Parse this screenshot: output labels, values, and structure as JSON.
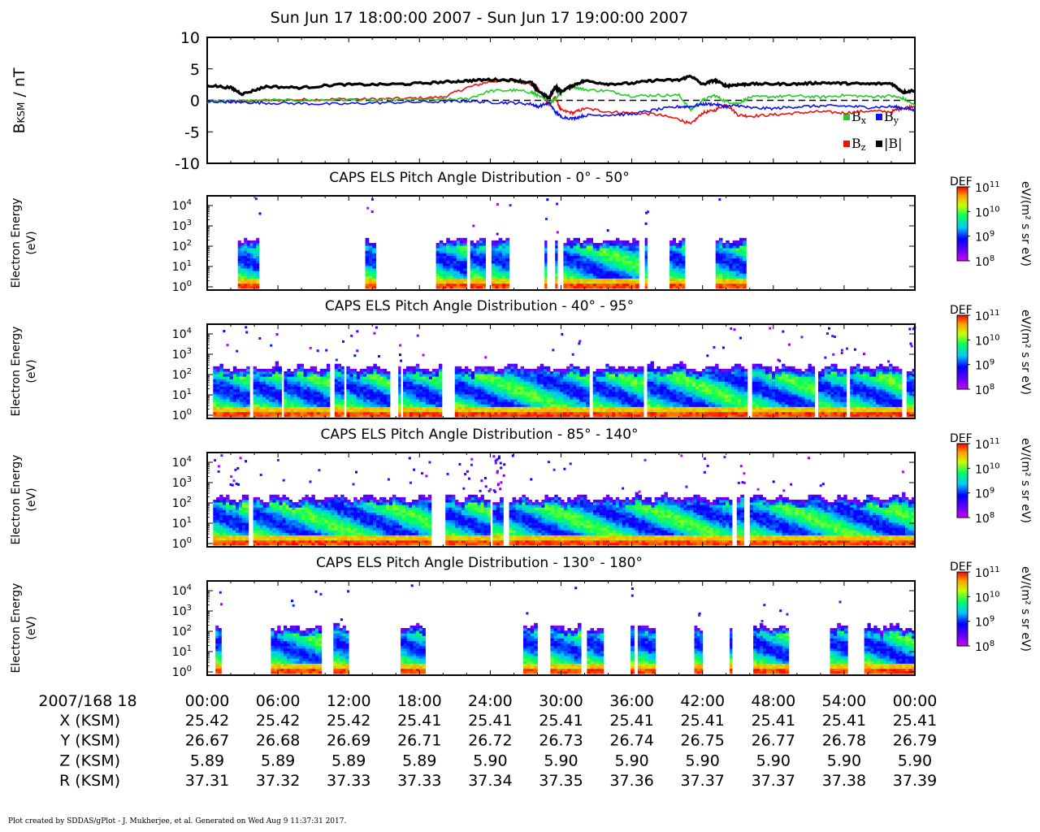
{
  "title": "Sun Jun 17 18:00:00 2007 - Sun Jun 17 19:00:00 2007",
  "footer": "Plot created by SDDAS/gPlot - J. Mukherjee, et al.  Generated on Wed Aug 9 11:37:31 2017.",
  "colors": {
    "bx": "#22cc22",
    "by": "#1010ee",
    "bz": "#ee1010",
    "bmag": "#000000"
  },
  "chart_data": [
    {
      "type": "line",
      "ylabel": "B",
      "ylabel_sub": "KSM",
      "ylabel_unit": " / nT",
      "ylim": [
        -10,
        10
      ],
      "yticks": [
        "10",
        "5",
        "0",
        "-5",
        "-10"
      ],
      "xlim_min": [
        0,
        60
      ],
      "zero_line": "dashed",
      "legend": {
        "placement": "bottom-right",
        "items": [
          {
            "key": "bx",
            "base": "B",
            "sub": "x"
          },
          {
            "key": "by",
            "base": "B",
            "sub": "y"
          },
          {
            "key": "bz",
            "base": "B",
            "sub": "z"
          },
          {
            "key": "bmag",
            "base": "|B|",
            "sub": ""
          }
        ]
      },
      "x_min": [
        0,
        2,
        3,
        5,
        8,
        11,
        14,
        17,
        20,
        22,
        24,
        26,
        27.5,
        28,
        29,
        29.5,
        30,
        31,
        32,
        34,
        36,
        38,
        40,
        41,
        42,
        43,
        44,
        45,
        46,
        48,
        50,
        52,
        54,
        56,
        58,
        59,
        60
      ],
      "series": [
        {
          "key": "bmag",
          "values": [
            2.4,
            2.0,
            1.0,
            2.2,
            2.0,
            2.5,
            2.5,
            2.6,
            2.9,
            3.1,
            3.3,
            3.2,
            2.8,
            1.6,
            0.3,
            2.2,
            1.4,
            2.4,
            3.1,
            2.6,
            2.7,
            3.2,
            3.2,
            3.9,
            2.5,
            3.2,
            2.3,
            2.5,
            2.6,
            2.6,
            2.6,
            2.8,
            2.7,
            2.6,
            2.7,
            1.3,
            1.6
          ]
        },
        {
          "key": "bx",
          "values": [
            -0.2,
            -0.1,
            -0.1,
            0.0,
            0.0,
            0.1,
            0.0,
            0.1,
            0.1,
            0.2,
            1.5,
            1.6,
            1.3,
            0.8,
            -0.3,
            0.2,
            1.3,
            2.2,
            1.7,
            1.5,
            0.7,
            0.8,
            0.8,
            -1.5,
            0.0,
            0.8,
            -0.2,
            -0.5,
            0.5,
            0.6,
            0.7,
            0.5,
            0.8,
            0.6,
            0.7,
            0.3,
            -0.8
          ]
        },
        {
          "key": "by",
          "values": [
            -0.2,
            -0.2,
            -0.3,
            -0.4,
            -0.5,
            -0.6,
            -0.4,
            -0.3,
            -0.2,
            -0.1,
            -0.3,
            -0.4,
            -0.6,
            -1.0,
            -0.4,
            -1.8,
            -2.6,
            -2.9,
            -2.4,
            -2.3,
            -2.2,
            -1.5,
            -1.0,
            -1.0,
            -0.6,
            -0.6,
            -1.0,
            -0.8,
            -1.2,
            -1.3,
            -1.0,
            -0.9,
            -0.9,
            -1.1,
            -1.0,
            -1.2,
            -1.6
          ]
        },
        {
          "key": "bz",
          "values": [
            -0.1,
            -0.2,
            -0.2,
            0.0,
            0.1,
            0.2,
            0.2,
            0.3,
            0.5,
            2.0,
            3.0,
            3.2,
            2.5,
            2.0,
            -0.8,
            0.5,
            -1.6,
            -2.0,
            -1.3,
            -1.8,
            -2.0,
            -2.2,
            -3.0,
            -3.8,
            -2.0,
            -1.6,
            -0.6,
            -2.3,
            -2.5,
            -2.3,
            -2.0,
            -1.8,
            -2.0,
            -1.7,
            -1.8,
            -1.2,
            -0.9
          ]
        }
      ]
    },
    {
      "type": "heatmap",
      "title": "CAPS ELS Pitch Angle Distribution - 0° - 50°",
      "ylabel": "Electron Energy\n(eV)",
      "colorbar_label": "DEF",
      "colorbar_unit": "eV/(m² s sr eV)",
      "colorbar_ticks": [
        "11",
        "10",
        "9",
        "8"
      ],
      "yticks": [
        "4",
        "3",
        "2",
        "1",
        "0"
      ],
      "log_energy_range": [
        0,
        4.4
      ],
      "coverage_min": [
        [
          2.6,
          4.4
        ],
        [
          13.4,
          14.3
        ],
        [
          19.4,
          22.0
        ],
        [
          22.3,
          23.6
        ],
        [
          24.1,
          25.6
        ],
        [
          28.6,
          28.8
        ],
        [
          29.5,
          29.7
        ],
        [
          30.2,
          36.6
        ],
        [
          37.1,
          37.3
        ],
        [
          39.2,
          40.5
        ],
        [
          43.1,
          45.7
        ]
      ],
      "top_ev_log": 2.35,
      "noise_count": 18
    },
    {
      "type": "heatmap",
      "title": "CAPS ELS Pitch Angle Distribution - 40° - 95°",
      "ylabel": "Electron Energy\n(eV)",
      "colorbar_label": "DEF",
      "colorbar_unit": "eV/(m² s sr eV)",
      "colorbar_ticks": [
        "11",
        "10",
        "9",
        "8"
      ],
      "yticks": [
        "4",
        "3",
        "2",
        "1",
        "0"
      ],
      "log_energy_range": [
        0,
        4.4
      ],
      "coverage_min": [
        [
          0.5,
          3.6
        ],
        [
          3.9,
          6.3
        ],
        [
          6.5,
          10.4
        ],
        [
          10.8,
          11.6
        ],
        [
          11.8,
          15.5
        ],
        [
          16.2,
          16.4
        ],
        [
          16.6,
          19.9
        ],
        [
          21.0,
          32.4
        ],
        [
          32.7,
          37.0
        ],
        [
          37.3,
          45.8
        ],
        [
          46.2,
          51.5
        ],
        [
          51.8,
          54.2
        ],
        [
          54.5,
          58.9
        ],
        [
          59.3,
          60.0
        ]
      ],
      "top_ev_log": 2.4,
      "noise_count": 60
    },
    {
      "type": "heatmap",
      "title": "CAPS ELS Pitch Angle Distribution - 85° - 140°",
      "ylabel": "Electron Energy\n(eV)",
      "colorbar_label": "DEF",
      "colorbar_unit": "eV/(m² s sr eV)",
      "colorbar_ticks": [
        "11",
        "10",
        "9",
        "8"
      ],
      "yticks": [
        "4",
        "3",
        "2",
        "1",
        "0"
      ],
      "log_energy_range": [
        0,
        4.4
      ],
      "coverage_min": [
        [
          0.5,
          3.5
        ],
        [
          3.9,
          19.0
        ],
        [
          20.2,
          24.0
        ],
        [
          24.2,
          25.1
        ],
        [
          25.6,
          44.5
        ],
        [
          44.9,
          45.5
        ],
        [
          46.0,
          60.0
        ]
      ],
      "top_ev_log": 2.3,
      "noise_count": 90
    },
    {
      "type": "heatmap",
      "title": "CAPS ELS Pitch Angle Distribution - 130° - 180°",
      "ylabel": "Electron Energy\n(eV)",
      "colorbar_label": "DEF",
      "colorbar_unit": "eV/(m² s sr eV)",
      "colorbar_ticks": [
        "11",
        "10",
        "9",
        "8"
      ],
      "yticks": [
        "4",
        "3",
        "2",
        "1",
        "0"
      ],
      "log_energy_range": [
        0,
        4.4
      ],
      "coverage_min": [
        [
          0.7,
          1.2
        ],
        [
          5.4,
          9.7
        ],
        [
          10.7,
          12.0
        ],
        [
          16.4,
          18.5
        ],
        [
          26.8,
          28.0
        ],
        [
          29.1,
          31.7
        ],
        [
          32.2,
          33.6
        ],
        [
          35.9,
          36.2
        ],
        [
          36.5,
          38.0
        ],
        [
          41.3,
          42.0
        ],
        [
          44.3,
          44.5
        ],
        [
          46.3,
          49.3
        ],
        [
          52.8,
          54.3
        ],
        [
          55.7,
          60.0
        ]
      ],
      "top_ev_log": 2.25,
      "noise_count": 20
    }
  ],
  "ephemeris": {
    "date_label": "2007/168 18",
    "times": [
      "00:00",
      "06:00",
      "12:00",
      "18:00",
      "24:00",
      "30:00",
      "36:00",
      "42:00",
      "48:00",
      "54:00",
      "00:00"
    ],
    "rows": [
      {
        "label": "X (KSM)",
        "values": [
          "25.42",
          "25.42",
          "25.42",
          "25.41",
          "25.41",
          "25.41",
          "25.41",
          "25.41",
          "25.41",
          "25.41",
          "25.41"
        ]
      },
      {
        "label": "Y (KSM)",
        "values": [
          "26.67",
          "26.68",
          "26.69",
          "26.71",
          "26.72",
          "26.73",
          "26.74",
          "26.75",
          "26.77",
          "26.78",
          "26.79"
        ]
      },
      {
        "label": "Z (KSM)",
        "values": [
          "5.89",
          "5.89",
          "5.89",
          "5.89",
          "5.90",
          "5.90",
          "5.90",
          "5.90",
          "5.90",
          "5.90",
          "5.90"
        ]
      },
      {
        "label": "R (KSM)",
        "values": [
          "37.31",
          "37.32",
          "37.33",
          "37.33",
          "37.34",
          "37.35",
          "37.36",
          "37.37",
          "37.37",
          "37.38",
          "37.39"
        ]
      }
    ]
  }
}
